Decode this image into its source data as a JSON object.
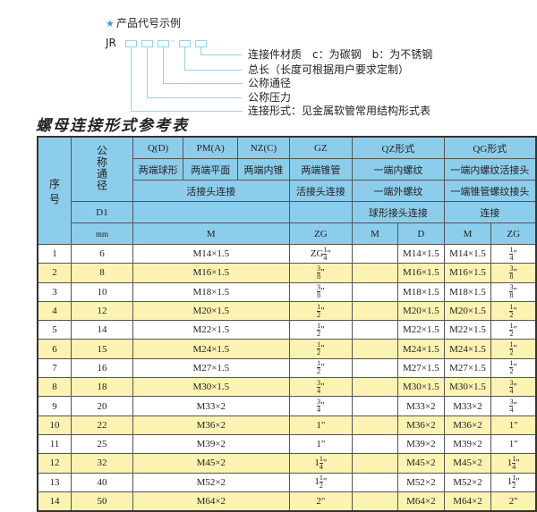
{
  "legend": {
    "heading": "产品代号示例",
    "code": "JR",
    "dash": "-",
    "labels": [
      "连接件材质　c：为碳钢　b：为不锈钢",
      "总长（长度可根据用户要求定制）",
      "公称通径",
      "公称压力",
      "连接形式：见金属软管常用结构形式表"
    ]
  },
  "title": "螺母连接形式参考表",
  "header": {
    "seq": "序　　号",
    "dn": "公称通径",
    "r1": [
      "Q(D)",
      "PM(A)",
      "NZ(C)",
      "GZ",
      "QZ形式",
      "QG形式"
    ],
    "r2": [
      "两端球形",
      "两端平面",
      "两端内锥",
      "两端锥管",
      "一端内螺纹",
      "一端内螺纹活接头"
    ],
    "r3": [
      "活接头连接",
      "活接头连接",
      "一端外螺纹",
      "一端锥管螺纹接头"
    ],
    "r4": [
      "D1",
      "",
      "",
      "球形接头连接",
      "连接"
    ],
    "r5": [
      "mm",
      "M",
      "ZG",
      "M",
      "D",
      "M",
      "ZG"
    ]
  },
  "rows": [
    {
      "no": "1",
      "d1": "6",
      "m": "M14×1.5",
      "zg": {
        "pre": "ZG",
        "whole": "",
        "num": "1",
        "den": "4",
        "unit": "\""
      },
      "qzm": "",
      "qzd": "M14×1.5",
      "qgm": "M14×1.5",
      "qgzg": {
        "pre": "",
        "whole": "",
        "num": "1",
        "den": "4",
        "unit": "\""
      }
    },
    {
      "no": "2",
      "d1": "8",
      "m": "M16×1.5",
      "zg": {
        "pre": "",
        "whole": "",
        "num": "3",
        "den": "8",
        "unit": "\""
      },
      "qzm": "",
      "qzd": "M16×1.5",
      "qgm": "M16×1.5",
      "qgzg": {
        "pre": "",
        "whole": "",
        "num": "3",
        "den": "8",
        "unit": "\""
      }
    },
    {
      "no": "3",
      "d1": "10",
      "m": "M18×1.5",
      "zg": {
        "pre": "",
        "whole": "",
        "num": "3",
        "den": "8",
        "unit": "\""
      },
      "qzm": "",
      "qzd": "M18×1.5",
      "qgm": "M18×1.5",
      "qgzg": {
        "pre": "",
        "whole": "",
        "num": "3",
        "den": "8",
        "unit": "\""
      }
    },
    {
      "no": "4",
      "d1": "12",
      "m": "M20×1.5",
      "zg": {
        "pre": "",
        "whole": "",
        "num": "1",
        "den": "2",
        "unit": "\""
      },
      "qzm": "",
      "qzd": "M20×1.5",
      "qgm": "M20×1.5",
      "qgzg": {
        "pre": "",
        "whole": "",
        "num": "1",
        "den": "2",
        "unit": "\""
      }
    },
    {
      "no": "5",
      "d1": "14",
      "m": "M22×1.5",
      "zg": {
        "pre": "",
        "whole": "",
        "num": "1",
        "den": "2",
        "unit": "\""
      },
      "qzm": "",
      "qzd": "M22×1.5",
      "qgm": "M22×1.5",
      "qgzg": {
        "pre": "",
        "whole": "",
        "num": "1",
        "den": "2",
        "unit": "\""
      }
    },
    {
      "no": "6",
      "d1": "15",
      "m": "M24×1.5",
      "zg": {
        "pre": "",
        "whole": "",
        "num": "1",
        "den": "2",
        "unit": "\""
      },
      "qzm": "",
      "qzd": "M24×1.5",
      "qgm": "M24×1.5",
      "qgzg": {
        "pre": "",
        "whole": "",
        "num": "1",
        "den": "2",
        "unit": "\""
      }
    },
    {
      "no": "7",
      "d1": "16",
      "m": "M27×1.5",
      "zg": {
        "pre": "",
        "whole": "",
        "num": "1",
        "den": "2",
        "unit": "\""
      },
      "qzm": "",
      "qzd": "M27×1.5",
      "qgm": "M27×1.5",
      "qgzg": {
        "pre": "",
        "whole": "",
        "num": "1",
        "den": "2",
        "unit": "\""
      }
    },
    {
      "no": "8",
      "d1": "18",
      "m": "M30×1.5",
      "zg": {
        "pre": "",
        "whole": "",
        "num": "3",
        "den": "4",
        "unit": "\""
      },
      "qzm": "",
      "qzd": "M30×1.5",
      "qgm": "M30×1.5",
      "qgzg": {
        "pre": "",
        "whole": "",
        "num": "3",
        "den": "4",
        "unit": "\""
      }
    },
    {
      "no": "9",
      "d1": "20",
      "m": "M33×2",
      "zg": {
        "pre": "",
        "whole": "",
        "num": "3",
        "den": "4",
        "unit": "\""
      },
      "qzm": "",
      "qzd": "M33×2",
      "qgm": "M33×2",
      "qgzg": {
        "pre": "",
        "whole": "",
        "num": "3",
        "den": "4",
        "unit": "\""
      }
    },
    {
      "no": "10",
      "d1": "22",
      "m": "M36×2",
      "zg": {
        "pre": "",
        "whole": "1",
        "num": "",
        "den": "",
        "unit": "\""
      },
      "qzm": "",
      "qzd": "M36×2",
      "qgm": "M36×2",
      "qgzg": {
        "pre": "",
        "whole": "1",
        "num": "",
        "den": "",
        "unit": "\""
      }
    },
    {
      "no": "11",
      "d1": "25",
      "m": "M39×2",
      "zg": {
        "pre": "",
        "whole": "1",
        "num": "",
        "den": "",
        "unit": "\""
      },
      "qzm": "",
      "qzd": "M39×2",
      "qgm": "M39×2",
      "qgzg": {
        "pre": "",
        "whole": "1",
        "num": "",
        "den": "",
        "unit": "\""
      }
    },
    {
      "no": "12",
      "d1": "32",
      "m": "M45×2",
      "zg": {
        "pre": "",
        "whole": "1",
        "num": "1",
        "den": "4",
        "unit": "\""
      },
      "qzm": "",
      "qzd": "M45×2",
      "qgm": "M45×2",
      "qgzg": {
        "pre": "",
        "whole": "1",
        "num": "1",
        "den": "4",
        "unit": "\""
      }
    },
    {
      "no": "13",
      "d1": "40",
      "m": "M52×2",
      "zg": {
        "pre": "",
        "whole": "1",
        "num": "1",
        "den": "2",
        "unit": "\""
      },
      "qzm": "",
      "qzd": "M52×2",
      "qgm": "M52×2",
      "qgzg": {
        "pre": "",
        "whole": "1",
        "num": "1",
        "den": "2",
        "unit": "\""
      }
    },
    {
      "no": "14",
      "d1": "50",
      "m": "M64×2",
      "zg": {
        "pre": "",
        "whole": "2",
        "num": "",
        "den": "",
        "unit": "\""
      },
      "qzm": "",
      "qzd": "M64×2",
      "qgm": "M64×2",
      "qgzg": {
        "pre": "",
        "whole": "2",
        "num": "",
        "den": "",
        "unit": "\""
      }
    }
  ],
  "colors": {
    "header_bg": "#8dcdec",
    "stripe": "#fcf3b3",
    "line": "#8fd3ea",
    "star": "#2aa6d6"
  }
}
